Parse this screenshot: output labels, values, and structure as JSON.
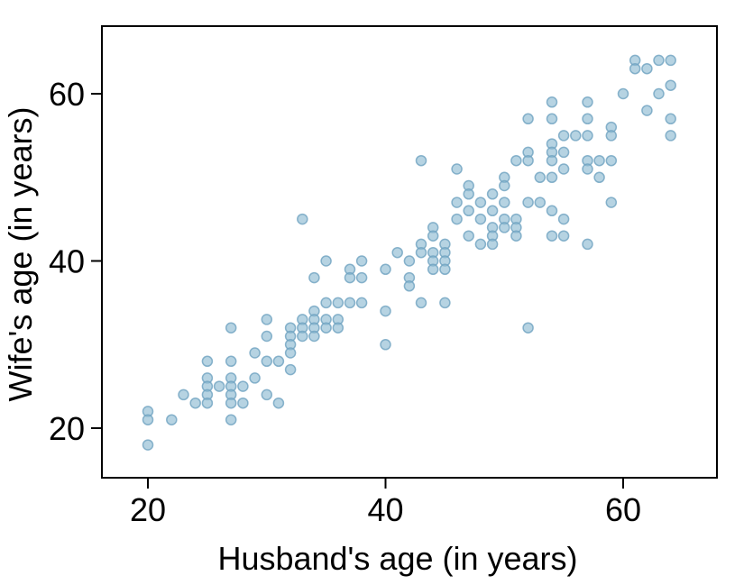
{
  "chart_data": {
    "type": "scatter",
    "title": "",
    "xlabel": "Husband's age (in years)",
    "ylabel": "Wife's age (in years)",
    "xlim": [
      16,
      68
    ],
    "ylim": [
      13,
      68
    ],
    "xticks": [
      20,
      40,
      60
    ],
    "yticks": [
      20,
      40,
      60
    ],
    "xtick_labels": [
      "20",
      "40",
      "60"
    ],
    "ytick_labels": [
      "20",
      "40",
      "60"
    ],
    "grid": false,
    "legend": "none",
    "point_color": "#8fbcd2",
    "point_edge_color": "#6fa3c0",
    "points": [
      [
        20,
        22
      ],
      [
        20,
        21
      ],
      [
        20,
        18
      ],
      [
        22,
        21
      ],
      [
        23,
        24
      ],
      [
        24,
        23
      ],
      [
        25,
        28
      ],
      [
        25,
        26
      ],
      [
        25,
        25
      ],
      [
        25,
        24
      ],
      [
        25,
        23
      ],
      [
        26,
        25
      ],
      [
        27,
        32
      ],
      [
        27,
        28
      ],
      [
        27,
        26
      ],
      [
        27,
        25
      ],
      [
        27,
        24
      ],
      [
        27,
        23
      ],
      [
        27,
        21
      ],
      [
        28,
        25
      ],
      [
        28,
        23
      ],
      [
        29,
        29
      ],
      [
        29,
        26
      ],
      [
        30,
        33
      ],
      [
        30,
        31
      ],
      [
        30,
        28
      ],
      [
        30,
        24
      ],
      [
        31,
        28
      ],
      [
        31,
        23
      ],
      [
        32,
        32
      ],
      [
        32,
        31
      ],
      [
        32,
        30
      ],
      [
        32,
        29
      ],
      [
        32,
        27
      ],
      [
        33,
        45
      ],
      [
        33,
        33
      ],
      [
        33,
        32
      ],
      [
        33,
        31
      ],
      [
        34,
        38
      ],
      [
        34,
        34
      ],
      [
        34,
        33
      ],
      [
        34,
        32
      ],
      [
        34,
        31
      ],
      [
        35,
        40
      ],
      [
        35,
        35
      ],
      [
        35,
        33
      ],
      [
        35,
        32
      ],
      [
        36,
        35
      ],
      [
        36,
        33
      ],
      [
        36,
        32
      ],
      [
        37,
        39
      ],
      [
        37,
        38
      ],
      [
        37,
        35
      ],
      [
        38,
        40
      ],
      [
        38,
        38
      ],
      [
        38,
        35
      ],
      [
        40,
        39
      ],
      [
        40,
        34
      ],
      [
        40,
        30
      ],
      [
        41,
        41
      ],
      [
        42,
        40
      ],
      [
        42,
        38
      ],
      [
        42,
        37
      ],
      [
        43,
        52
      ],
      [
        43,
        42
      ],
      [
        43,
        41
      ],
      [
        43,
        35
      ],
      [
        44,
        44
      ],
      [
        44,
        43
      ],
      [
        44,
        41
      ],
      [
        44,
        40
      ],
      [
        44,
        39
      ],
      [
        45,
        42
      ],
      [
        45,
        41
      ],
      [
        45,
        40
      ],
      [
        45,
        39
      ],
      [
        45,
        35
      ],
      [
        46,
        51
      ],
      [
        46,
        47
      ],
      [
        46,
        45
      ],
      [
        47,
        49
      ],
      [
        47,
        48
      ],
      [
        47,
        46
      ],
      [
        47,
        43
      ],
      [
        48,
        47
      ],
      [
        48,
        45
      ],
      [
        48,
        42
      ],
      [
        49,
        48
      ],
      [
        49,
        46
      ],
      [
        49,
        44
      ],
      [
        49,
        43
      ],
      [
        49,
        42
      ],
      [
        50,
        50
      ],
      [
        50,
        49
      ],
      [
        50,
        47
      ],
      [
        50,
        45
      ],
      [
        50,
        44
      ],
      [
        51,
        52
      ],
      [
        51,
        45
      ],
      [
        51,
        44
      ],
      [
        51,
        43
      ],
      [
        52,
        57
      ],
      [
        52,
        53
      ],
      [
        52,
        52
      ],
      [
        52,
        47
      ],
      [
        52,
        32
      ],
      [
        53,
        50
      ],
      [
        53,
        47
      ],
      [
        54,
        59
      ],
      [
        54,
        57
      ],
      [
        54,
        54
      ],
      [
        54,
        53
      ],
      [
        54,
        52
      ],
      [
        54,
        50
      ],
      [
        54,
        46
      ],
      [
        54,
        43
      ],
      [
        55,
        55
      ],
      [
        55,
        53
      ],
      [
        55,
        51
      ],
      [
        55,
        45
      ],
      [
        55,
        43
      ],
      [
        56,
        55
      ],
      [
        57,
        59
      ],
      [
        57,
        57
      ],
      [
        57,
        55
      ],
      [
        57,
        52
      ],
      [
        57,
        51
      ],
      [
        57,
        42
      ],
      [
        58,
        52
      ],
      [
        58,
        50
      ],
      [
        59,
        56
      ],
      [
        59,
        55
      ],
      [
        59,
        52
      ],
      [
        59,
        47
      ],
      [
        60,
        60
      ],
      [
        61,
        64
      ],
      [
        61,
        63
      ],
      [
        62,
        63
      ],
      [
        62,
        58
      ],
      [
        63,
        64
      ],
      [
        63,
        60
      ],
      [
        64,
        64
      ],
      [
        64,
        61
      ],
      [
        64,
        57
      ],
      [
        64,
        55
      ]
    ]
  }
}
